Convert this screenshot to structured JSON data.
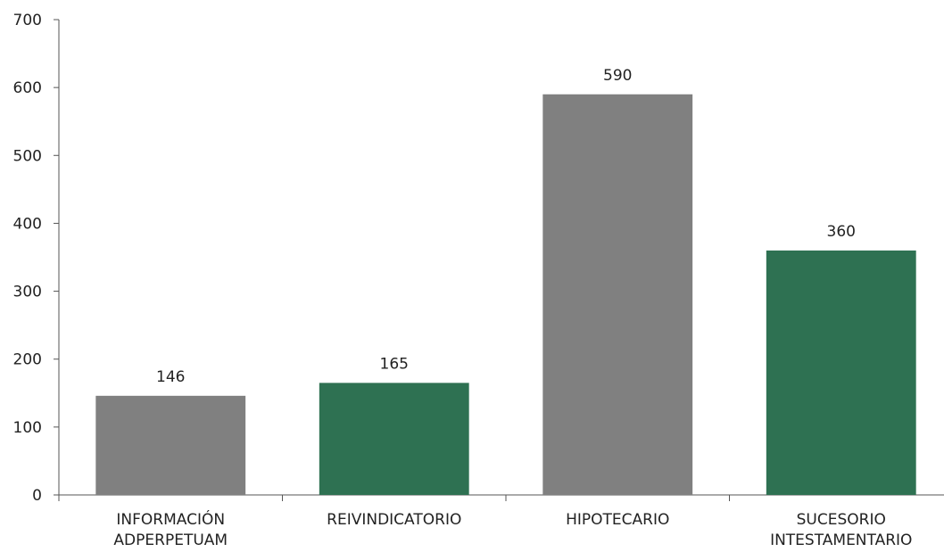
{
  "chart_data": {
    "type": "bar",
    "title": "",
    "xlabel": "",
    "ylabel": "",
    "categories": [
      [
        "INFORMACIÓN",
        "ADPERPETUAM"
      ],
      [
        "REIVINDICATORIO"
      ],
      [
        "HIPOTECARIO"
      ],
      [
        "SUCESORIO",
        "INTESTAMENTARIO"
      ]
    ],
    "values": [
      146,
      165,
      590,
      360
    ],
    "bar_colors": [
      "#808080",
      "#2e7152",
      "#808080",
      "#2e7152"
    ],
    "ylim": [
      0,
      700
    ],
    "yticks": [
      0,
      100,
      200,
      300,
      400,
      500,
      600,
      700
    ],
    "grid": false,
    "legend": "none"
  }
}
